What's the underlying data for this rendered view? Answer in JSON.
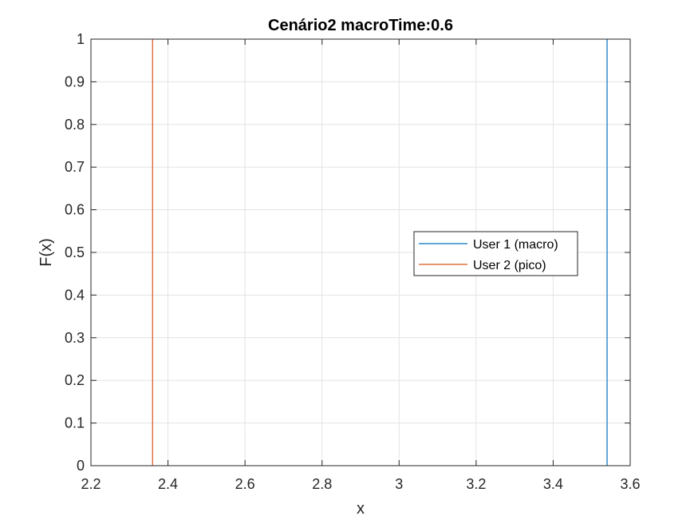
{
  "chart_data": {
    "type": "line",
    "title": "Cenário2 macroTime:0.6",
    "xlabel": "x",
    "ylabel": "F(x)",
    "xlim": [
      2.2,
      3.6
    ],
    "ylim": [
      0,
      1
    ],
    "xticks": [
      2.2,
      2.4,
      2.6,
      2.8,
      3,
      3.2,
      3.4,
      3.6
    ],
    "xtick_labels": [
      "2.2",
      "2.4",
      "2.6",
      "2.8",
      "3",
      "3.2",
      "3.4",
      "3.6"
    ],
    "yticks": [
      0,
      0.1,
      0.2,
      0.3,
      0.4,
      0.5,
      0.6,
      0.7,
      0.8,
      0.9,
      1
    ],
    "ytick_labels": [
      "0",
      "0.1",
      "0.2",
      "0.3",
      "0.4",
      "0.5",
      "0.6",
      "0.7",
      "0.8",
      "0.9",
      "1"
    ],
    "grid": true,
    "legend_position": "center-right",
    "series": [
      {
        "name": "User 1 (macro)",
        "color": "#0072BD",
        "x": [
          3.54,
          3.54
        ],
        "y": [
          0,
          1
        ]
      },
      {
        "name": "User 2 (pico)",
        "color": "#D95319",
        "x": [
          2.36,
          2.36
        ],
        "y": [
          0,
          1
        ]
      }
    ]
  }
}
